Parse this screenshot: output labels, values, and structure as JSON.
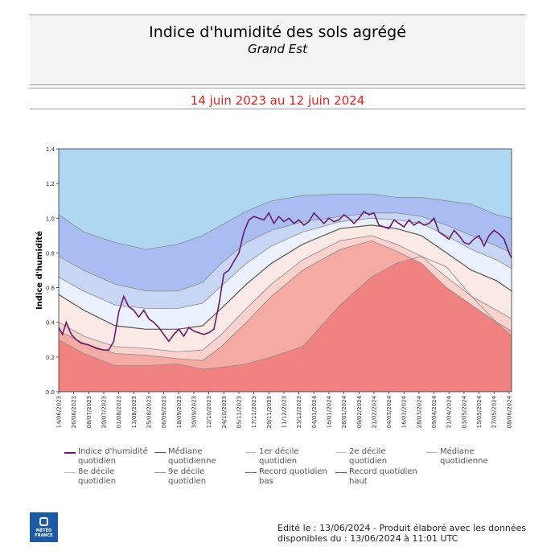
{
  "header": {
    "title": "Indice d'humidité des sols agrégé",
    "subtitle": "Grand Est",
    "period": "14 juin 2023 au 12 juin 2024"
  },
  "chart_data": {
    "type": "area",
    "ylabel": "Indice d'humidité",
    "ylim": [
      0.0,
      1.4
    ],
    "yticks": [
      "0.0",
      "0.2",
      "0.4",
      "0.6",
      "0.8",
      "1.0",
      "1.2",
      "1.4"
    ],
    "x_tick_labels": [
      "14/06/2023",
      "26/06/2023",
      "08/07/2023",
      "20/07/2023",
      "01/08/2023",
      "13/08/2023",
      "25/08/2023",
      "06/09/2023",
      "18/09/2023",
      "30/09/2023",
      "12/10/2023",
      "24/10/2023",
      "05/11/2023",
      "17/11/2023",
      "29/11/2023",
      "11/12/2023",
      "23/12/2023",
      "04/01/2024",
      "16/01/2024",
      "28/01/2024",
      "09/02/2024",
      "21/02/2024",
      "04/03/2024",
      "16/03/2024",
      "28/03/2024",
      "09/04/2024",
      "21/04/2024",
      "03/05/2024",
      "15/05/2024",
      "27/05/2024",
      "08/06/2024"
    ],
    "x_positions": [
      0,
      12,
      24,
      36,
      48,
      60,
      72,
      84,
      96,
      108,
      120,
      132,
      144,
      156,
      168,
      180,
      192,
      204,
      216,
      228,
      240,
      252,
      264,
      276,
      288,
      300,
      312,
      324,
      336,
      348,
      360
    ],
    "band_colors": [
      "#f08282",
      "#f6aaa4",
      "#fbd2cd",
      "#fbe9e6",
      "#eaf1fc",
      "#c8d6f6",
      "#a9bdf3",
      "#aed7f2"
    ],
    "band_anchors_x": [
      0,
      20,
      45,
      70,
      95,
      115,
      130,
      150,
      170,
      195,
      225,
      250,
      270,
      290,
      310,
      330,
      350,
      362
    ],
    "series": [
      {
        "name": "Record quotidien bas",
        "values": [
          0.3,
          0.22,
          0.15,
          0.15,
          0.16,
          0.13,
          0.14,
          0.16,
          0.2,
          0.26,
          0.5,
          0.66,
          0.74,
          0.78,
          0.72,
          0.55,
          0.4,
          0.32
        ]
      },
      {
        "name": "2e décile quotidien",
        "values": [
          0.35,
          0.28,
          0.22,
          0.21,
          0.19,
          0.18,
          0.26,
          0.4,
          0.55,
          0.7,
          0.82,
          0.87,
          0.81,
          0.74,
          0.6,
          0.5,
          0.4,
          0.35
        ]
      },
      {
        "name": "1er décile quotidien",
        "values": [
          0.4,
          0.32,
          0.26,
          0.25,
          0.23,
          0.24,
          0.33,
          0.48,
          0.62,
          0.76,
          0.87,
          0.9,
          0.85,
          0.78,
          0.66,
          0.55,
          0.47,
          0.42
        ]
      },
      {
        "name": "Médiane quotidienne",
        "values": [
          0.56,
          0.47,
          0.38,
          0.36,
          0.36,
          0.38,
          0.48,
          0.62,
          0.74,
          0.85,
          0.94,
          0.96,
          0.94,
          0.9,
          0.8,
          0.7,
          0.64,
          0.58
        ]
      },
      {
        "name": "8e décile quotidien",
        "values": [
          0.66,
          0.58,
          0.5,
          0.48,
          0.48,
          0.51,
          0.61,
          0.74,
          0.84,
          0.92,
          0.98,
          1.0,
          0.99,
          0.97,
          0.9,
          0.82,
          0.76,
          0.71
        ]
      },
      {
        "name": "9e décile quotidien",
        "values": [
          0.78,
          0.7,
          0.62,
          0.58,
          0.58,
          0.63,
          0.74,
          0.86,
          0.93,
          0.98,
          1.01,
          1.03,
          1.03,
          1.01,
          0.96,
          0.9,
          0.84,
          0.8
        ]
      },
      {
        "name": "Record quotidien haut",
        "values": [
          1.02,
          0.92,
          0.86,
          0.82,
          0.85,
          0.9,
          0.96,
          1.04,
          1.1,
          1.13,
          1.14,
          1.14,
          1.12,
          1.12,
          1.1,
          1.08,
          1.02,
          1.0
        ]
      }
    ],
    "index_series": {
      "name": "Indice d'humidité quotidien",
      "color": "#6a1b6e",
      "x": [
        0,
        3,
        6,
        10,
        14,
        18,
        24,
        30,
        36,
        40,
        44,
        48,
        52,
        56,
        60,
        64,
        68,
        72,
        76,
        80,
        84,
        88,
        92,
        96,
        100,
        104,
        108,
        112,
        116,
        120,
        124,
        128,
        132,
        136,
        140,
        144,
        148,
        152,
        156,
        160,
        164,
        168,
        172,
        176,
        180,
        184,
        188,
        192,
        196,
        200,
        204,
        208,
        212,
        216,
        220,
        224,
        228,
        232,
        236,
        240,
        244,
        248,
        252,
        256,
        260,
        264,
        268,
        272,
        276,
        280,
        284,
        288,
        292,
        296,
        300,
        304,
        308,
        312,
        316,
        320,
        324,
        328,
        332,
        336,
        340,
        344,
        348,
        352,
        356,
        360,
        362
      ],
      "values": [
        0.37,
        0.33,
        0.4,
        0.33,
        0.3,
        0.28,
        0.27,
        0.25,
        0.24,
        0.24,
        0.29,
        0.46,
        0.55,
        0.49,
        0.47,
        0.43,
        0.47,
        0.42,
        0.4,
        0.37,
        0.33,
        0.29,
        0.33,
        0.36,
        0.32,
        0.37,
        0.35,
        0.34,
        0.33,
        0.34,
        0.36,
        0.5,
        0.68,
        0.7,
        0.75,
        0.8,
        0.92,
        0.99,
        1.01,
        1.0,
        0.99,
        1.03,
        0.97,
        1.01,
        0.98,
        1.0,
        0.97,
        0.99,
        0.96,
        0.98,
        1.03,
        1.0,
        0.97,
        1.0,
        0.98,
        0.99,
        1.02,
        1.0,
        0.97,
        1.0,
        1.04,
        1.02,
        1.03,
        0.96,
        0.95,
        0.94,
        0.99,
        0.97,
        0.95,
        0.99,
        0.96,
        0.98,
        0.96,
        0.97,
        1.0,
        0.92,
        0.9,
        0.88,
        0.93,
        0.9,
        0.86,
        0.85,
        0.88,
        0.9,
        0.84,
        0.9,
        0.93,
        0.91,
        0.88,
        0.8,
        0.77
      ]
    }
  },
  "legend": [
    {
      "label": "Indice d'humidité quotidien",
      "color": "#6a1b6e",
      "weight": 2
    },
    {
      "label": "Médiane quotidienne",
      "color": "#555555",
      "weight": 1
    },
    {
      "label": "1er décile quotidien",
      "color": "#d6a8a4",
      "weight": 1
    },
    {
      "label": "2e décile quotidien",
      "color": "#c8b2b0",
      "weight": 1
    },
    {
      "label": "Médiane quotidienne",
      "color": "#b0b0b0",
      "weight": 1
    },
    {
      "label": "8e décile quotidien",
      "color": "#bfbfbf",
      "weight": 1
    },
    {
      "label": "9e décile quotidien",
      "color": "#9a9a9a",
      "weight": 1
    },
    {
      "label": "Record quotidien bas",
      "color": "#777777",
      "weight": 1
    },
    {
      "label": "Record quotidien haut",
      "color": "#666666",
      "weight": 1
    }
  ],
  "footer": {
    "logo_text": "MÉTÉO FRANCE",
    "line1": "Edité le : 13/06/2024 - Produit élaboré avec les données",
    "line2": "disponibles du : 13/06/2024 à 11:01 UTC"
  }
}
